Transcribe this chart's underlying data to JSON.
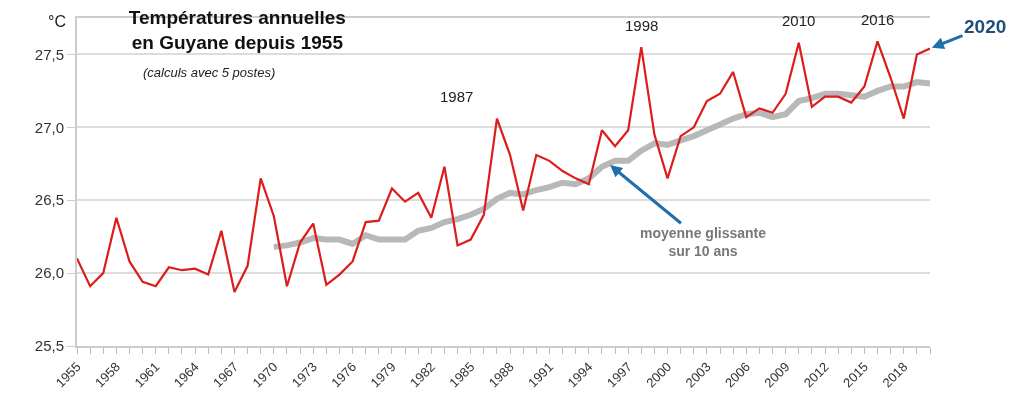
{
  "chart_data": {
    "type": "line",
    "title": "Températures annuelles\nen Guyane depuis 1955",
    "subtitle": "(calculs avec 5 postes)",
    "ylabel": "°C",
    "xlim": [
      1955,
      2020
    ],
    "xticks": [
      {
        "value": 1955,
        "label": "1955"
      },
      {
        "value": 1956,
        "label": null
      },
      {
        "value": 1957,
        "label": null
      },
      {
        "value": 1958,
        "label": "1958"
      },
      {
        "value": 1959,
        "label": null
      },
      {
        "value": 1960,
        "label": null
      },
      {
        "value": 1961,
        "label": "1961"
      },
      {
        "value": 1962,
        "label": null
      },
      {
        "value": 1963,
        "label": null
      },
      {
        "value": 1964,
        "label": "1964"
      },
      {
        "value": 1965,
        "label": null
      },
      {
        "value": 1966,
        "label": null
      },
      {
        "value": 1967,
        "label": "1967"
      },
      {
        "value": 1968,
        "label": null
      },
      {
        "value": 1969,
        "label": null
      },
      {
        "value": 1970,
        "label": "1970"
      },
      {
        "value": 1971,
        "label": null
      },
      {
        "value": 1972,
        "label": null
      },
      {
        "value": 1973,
        "label": "1973"
      },
      {
        "value": 1974,
        "label": null
      },
      {
        "value": 1975,
        "label": null
      },
      {
        "value": 1976,
        "label": "1976"
      },
      {
        "value": 1977,
        "label": null
      },
      {
        "value": 1978,
        "label": null
      },
      {
        "value": 1979,
        "label": "1979"
      },
      {
        "value": 1980,
        "label": null
      },
      {
        "value": 1981,
        "label": null
      },
      {
        "value": 1982,
        "label": "1982"
      },
      {
        "value": 1983,
        "label": null
      },
      {
        "value": 1984,
        "label": null
      },
      {
        "value": 1985,
        "label": "1985"
      },
      {
        "value": 1986,
        "label": null
      },
      {
        "value": 1987,
        "label": null
      },
      {
        "value": 1988,
        "label": "1988"
      },
      {
        "value": 1989,
        "label": null
      },
      {
        "value": 1990,
        "label": null
      },
      {
        "value": 1991,
        "label": "1991"
      },
      {
        "value": 1992,
        "label": null
      },
      {
        "value": 1993,
        "label": null
      },
      {
        "value": 1994,
        "label": "1994"
      },
      {
        "value": 1995,
        "label": null
      },
      {
        "value": 1996,
        "label": null
      },
      {
        "value": 1997,
        "label": "1997"
      },
      {
        "value": 1998,
        "label": null
      },
      {
        "value": 1999,
        "label": null
      },
      {
        "value": 2000,
        "label": "2000"
      },
      {
        "value": 2001,
        "label": null
      },
      {
        "value": 2002,
        "label": null
      },
      {
        "value": 2003,
        "label": "2003"
      },
      {
        "value": 2004,
        "label": null
      },
      {
        "value": 2005,
        "label": null
      },
      {
        "value": 2006,
        "label": "2006"
      },
      {
        "value": 2007,
        "label": null
      },
      {
        "value": 2008,
        "label": null
      },
      {
        "value": 2009,
        "label": "2009"
      },
      {
        "value": 2010,
        "label": null
      },
      {
        "value": 2011,
        "label": null
      },
      {
        "value": 2012,
        "label": "2012"
      },
      {
        "value": 2013,
        "label": null
      },
      {
        "value": 2014,
        "label": null
      },
      {
        "value": 2015,
        "label": "2015"
      },
      {
        "value": 2016,
        "label": null
      },
      {
        "value": 2017,
        "label": null
      },
      {
        "value": 2018,
        "label": "2018"
      },
      {
        "value": 2019,
        "label": null
      },
      {
        "value": 2020,
        "label": null
      }
    ],
    "ylim": [
      25.5,
      27.75
    ],
    "yticks": [
      {
        "value": 25.5,
        "label": "25,5"
      },
      {
        "value": 26,
        "label": "26,0"
      },
      {
        "value": 26.5,
        "label": "26,5"
      },
      {
        "value": 27,
        "label": "27,0"
      },
      {
        "value": 27.5,
        "label": "27,5"
      }
    ],
    "grid": "y",
    "marker": "none",
    "line_style": "solid",
    "series": [
      {
        "color": "#b8b8b8",
        "x": [
          1970,
          1971,
          1972,
          1973,
          1974,
          1975,
          1976,
          1977,
          1978,
          1979,
          1980,
          1981,
          1982,
          1983,
          1984,
          1985,
          1986,
          1987,
          1988,
          1989,
          1990,
          1991,
          1992,
          1993,
          1994,
          1995,
          1996,
          1997,
          1998,
          1999,
          2000,
          2001,
          2002,
          2003,
          2004,
          2005,
          2006,
          2007,
          2008,
          2009,
          2010,
          2011,
          2012,
          2013,
          2014,
          2015,
          2016,
          2017,
          2018,
          2019,
          2020
        ],
        "values": [
          26.18,
          26.19,
          26.21,
          26.24,
          26.23,
          26.23,
          26.2,
          26.26,
          26.23,
          26.23,
          26.23,
          26.29,
          26.31,
          26.35,
          26.37,
          26.4,
          26.44,
          26.51,
          26.55,
          26.54,
          26.57,
          26.59,
          26.62,
          26.61,
          26.65,
          26.73,
          26.77,
          26.77,
          26.84,
          26.89,
          26.88,
          26.91,
          26.94,
          26.98,
          27.02,
          27.06,
          27.09,
          27.1,
          27.07,
          27.09,
          27.18,
          27.2,
          27.23,
          27.23,
          27.22,
          27.21,
          27.25,
          27.28,
          27.28,
          27.31,
          27.3
        ]
      },
      {
        "color": "#dd1c1c",
        "x": [
          1955,
          1956,
          1957,
          1958,
          1959,
          1960,
          1961,
          1962,
          1963,
          1964,
          1965,
          1966,
          1967,
          1968,
          1969,
          1970,
          1971,
          1972,
          1973,
          1974,
          1975,
          1976,
          1977,
          1978,
          1979,
          1980,
          1981,
          1982,
          1983,
          1984,
          1985,
          1986,
          1987,
          1988,
          1989,
          1990,
          1991,
          1992,
          1993,
          1994,
          1995,
          1996,
          1997,
          1998,
          1999,
          2000,
          2001,
          2002,
          2003,
          2004,
          2005,
          2006,
          2007,
          2008,
          2009,
          2010,
          2011,
          2012,
          2013,
          2014,
          2015,
          2016,
          2017,
          2018,
          2019,
          2020
        ],
        "values": [
          26.1,
          25.91,
          26.0,
          26.38,
          26.08,
          25.94,
          25.91,
          26.04,
          26.02,
          26.03,
          25.99,
          26.29,
          25.87,
          26.05,
          26.65,
          26.39,
          25.91,
          26.21,
          26.34,
          25.92,
          25.99,
          26.08,
          26.35,
          26.36,
          26.58,
          26.49,
          26.55,
          26.38,
          26.73,
          26.19,
          26.23,
          26.4,
          27.06,
          26.81,
          26.43,
          26.81,
          26.77,
          26.7,
          26.65,
          26.61,
          26.98,
          26.87,
          26.98,
          27.55,
          26.95,
          26.65,
          26.94,
          27.0,
          27.18,
          27.23,
          27.38,
          27.07,
          27.13,
          27.1,
          27.23,
          27.58,
          27.14,
          27.21,
          27.21,
          27.17,
          27.28,
          27.59,
          27.34,
          27.06,
          27.5,
          27.54
        ]
      }
    ],
    "annotations": [
      {
        "text": "1987",
        "x": 1987,
        "y": 27.06
      },
      {
        "text": "1998",
        "x": 1998,
        "y": 27.55
      },
      {
        "text": "2010",
        "x": 2010,
        "y": 27.58
      },
      {
        "text": "2016",
        "x": 2016,
        "y": 27.59
      },
      {
        "text": "2020",
        "x": 2020,
        "y": 27.54
      },
      {
        "text": "moyenne glissante\nsur 10 ans",
        "x": 1995.5,
        "y": 26.75
      }
    ]
  }
}
